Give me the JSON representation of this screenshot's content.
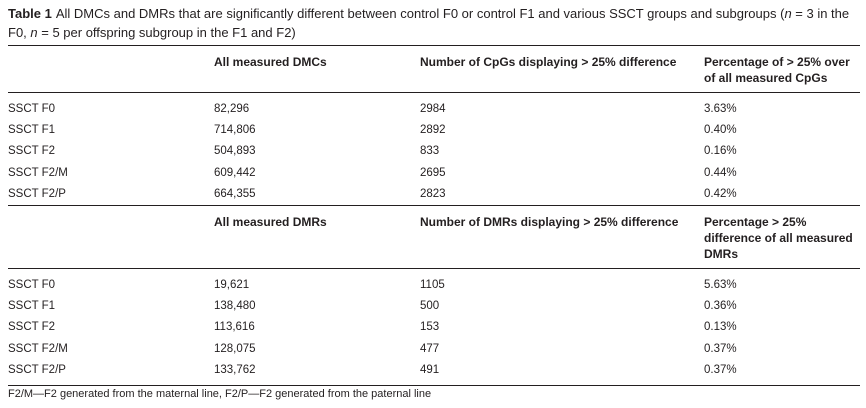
{
  "caption": {
    "label": "Table 1",
    "text_part1": "All DMCs and DMRs that are significantly different between control F0 or control F1 and various SSCT groups and subgroups (",
    "n1": "n",
    "text_part2": " = 3 in the F0, ",
    "n2": "n",
    "text_part3": " = 5 per offspring subgroup in the F1 and F2)"
  },
  "dmc_section": {
    "headers": [
      "",
      "All measured DMCs",
      "Number of CpGs displaying > 25% difference",
      "Percentage of > 25% over of all measured CpGs"
    ],
    "rows": [
      [
        "SSCT F0",
        "82,296",
        "2984",
        "3.63%"
      ],
      [
        "SSCT F1",
        "714,806",
        "2892",
        "0.40%"
      ],
      [
        "SSCT F2",
        "504,893",
        "833",
        "0.16%"
      ],
      [
        "SSCT F2/M",
        "609,442",
        "2695",
        "0.44%"
      ],
      [
        "SSCT F2/P",
        "664,355",
        "2823",
        "0.42%"
      ]
    ]
  },
  "dmr_section": {
    "headers": [
      "",
      "All measured DMRs",
      "Number of DMRs displaying > 25% difference",
      "Percentage > 25% difference of all measured DMRs"
    ],
    "rows": [
      [
        "SSCT F0",
        "19,621",
        "1105",
        "5.63%"
      ],
      [
        "SSCT F1",
        "138,480",
        "500",
        "0.36%"
      ],
      [
        "SSCT F2",
        "113,616",
        "153",
        "0.13%"
      ],
      [
        "SSCT F2/M",
        "128,075",
        "477",
        "0.37%"
      ],
      [
        "SSCT F2/P",
        "133,762",
        "491",
        "0.37%"
      ]
    ]
  },
  "footnote": "F2/M—F2 generated from the maternal line, F2/P—F2 generated from the paternal line"
}
